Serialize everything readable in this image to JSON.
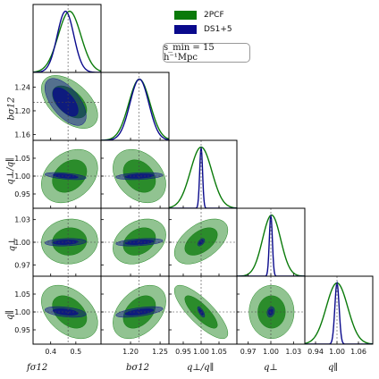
{
  "chart_data": {
    "type": "corner",
    "legend": {
      "placement": "top-right",
      "entries": [
        {
          "name": "2PCF",
          "color": "#0a7a0a"
        },
        {
          "name": "DS1+5",
          "color": "#0a0a8c"
        }
      ]
    },
    "annotation": "s_min = 15 h⁻¹Mpc",
    "parameters": [
      {
        "name": "fσ12",
        "truth": 0.469,
        "range": [
          0.33,
          0.6
        ],
        "ticks": [
          0.4,
          0.5
        ],
        "tick_labels": [
          "0.4",
          "0.5"
        ]
      },
      {
        "name": "bσ12",
        "truth": 1.214,
        "range": [
          1.15,
          1.265
        ],
        "ticks": [
          1.16,
          1.2,
          1.24
        ],
        "tick_labels": [
          "1.16",
          "1.20",
          "1.24"
        ],
        "xticks": [
          1.2,
          1.25
        ],
        "xtick_labels": [
          "1.20",
          "1.25"
        ]
      },
      {
        "name": "q⊥/q∥",
        "truth": 1.0,
        "range": [
          0.91,
          1.1
        ],
        "ticks": [
          0.95,
          1.0,
          1.05
        ],
        "tick_labels": [
          "0.95",
          "1.00",
          "1.05"
        ]
      },
      {
        "name": "q⊥",
        "truth": 1.0,
        "range": [
          0.955,
          1.045
        ],
        "ticks": [
          0.97,
          1.0,
          1.03
        ],
        "tick_labels": [
          "0.97",
          "1.00",
          "1.03"
        ]
      },
      {
        "name": "q∥",
        "truth": 1.0,
        "range": [
          0.91,
          1.1
        ],
        "ticks": [
          0.95,
          1.0,
          1.05
        ],
        "tick_labels": [
          "0.95",
          "1.00",
          "1.05"
        ],
        "xticks": [
          0.94,
          1.0,
          1.06
        ],
        "xtick_labels": [
          "0.94",
          "1.00",
          "1.06"
        ]
      }
    ],
    "series": [
      {
        "name": "2PCF",
        "color": "#0a7a0a",
        "means": [
          0.475,
          1.215,
          1.0,
          1.001,
          1.0
        ],
        "sigmas": [
          0.045,
          0.018,
          0.03,
          0.012,
          0.03
        ],
        "corr": [
          [
            1,
            -0.5,
            0.3,
            0.05,
            -0.4
          ],
          [
            -0.5,
            1,
            -0.3,
            0.3,
            0.4
          ],
          [
            0.3,
            -0.3,
            1,
            0.5,
            -0.8
          ],
          [
            0.05,
            0.3,
            0.5,
            1,
            0.0
          ],
          [
            -0.4,
            0.4,
            -0.8,
            0.0,
            1
          ]
        ]
      },
      {
        "name": "DS1+5",
        "color": "#0a0a8c",
        "means": [
          0.459,
          1.215,
          1.0,
          1.0,
          1.0
        ],
        "sigmas": [
          0.033,
          0.016,
          0.004,
          0.002,
          0.006
        ],
        "corr": [
          [
            1,
            -0.6,
            -0.5,
            0.2,
            -0.4
          ],
          [
            -0.6,
            1,
            0.3,
            0.4,
            0.6
          ],
          [
            -0.5,
            0.3,
            1,
            0.5,
            -0.7
          ],
          [
            0.2,
            0.4,
            0.5,
            1,
            0.2
          ],
          [
            -0.4,
            0.6,
            -0.7,
            0.2,
            1
          ]
        ]
      }
    ],
    "contour_levels": [
      "1σ",
      "2σ"
    ],
    "grid": false
  }
}
